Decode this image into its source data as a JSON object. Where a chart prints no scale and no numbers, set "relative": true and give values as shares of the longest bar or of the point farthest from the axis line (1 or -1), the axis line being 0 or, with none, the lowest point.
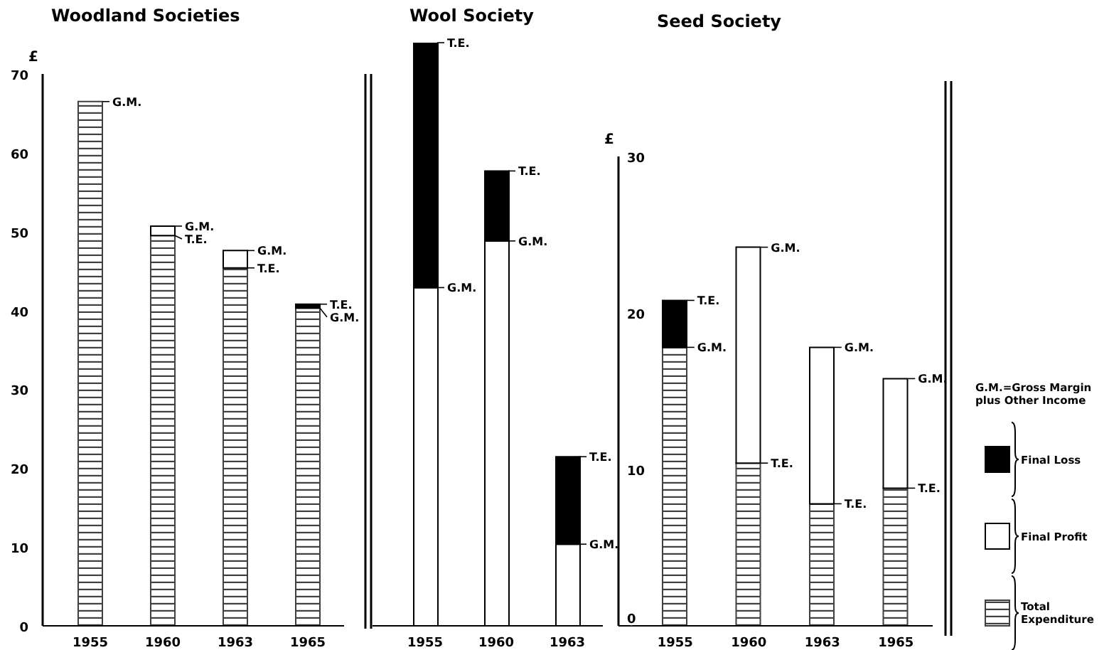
{
  "chart_data": [
    {
      "type": "bar",
      "title": "Woodland Societies",
      "ylabel": "£",
      "stacked": true,
      "categories": [
        "1955",
        "1960",
        "1963",
        "1965"
      ],
      "series": [
        {
          "color": "#404040",
          "values": [
            66.5,
            49.5,
            45.4,
            40.3
          ]
        },
        {
          "color": "#ffffff",
          "values": [
            0,
            1.2,
            2.2,
            0
          ]
        },
        {
          "color": "#000000",
          "values": [
            0,
            0,
            0,
            0.5
          ]
        }
      ],
      "ylim": [
        0,
        70
      ],
      "yticks": [
        0,
        10,
        20,
        30,
        40,
        50,
        60,
        70
      ],
      "grid": false,
      "legend": false,
      "annotations": [
        {
          "text": "G.M.",
          "x": "1955",
          "y": 66.5
        },
        {
          "text": "G.M.",
          "x": "1960",
          "y": 50.7
        },
        {
          "text": "T.E.",
          "x": "1960",
          "y": 49.5
        },
        {
          "text": "G.M.",
          "x": "1963",
          "y": 47.6
        },
        {
          "text": "T.E.",
          "x": "1963",
          "y": 45.4
        },
        {
          "text": "T.E.",
          "x": "1965",
          "y": 40.8
        },
        {
          "text": "G.M.",
          "x": "1965",
          "y": 40.3
        }
      ]
    },
    {
      "type": "bar",
      "title": "Wool Society",
      "stacked": true,
      "categories": [
        "1955",
        "1960",
        "1963"
      ],
      "series": [
        {
          "color": "#ffffff",
          "values": [
            0.58,
            0.66,
            0.14
          ]
        },
        {
          "color": "#000000",
          "values": [
            0.42,
            0.12,
            0.15
          ]
        }
      ],
      "relative": true,
      "grid": false,
      "legend": false,
      "annotations": [
        {
          "text": "T.E.",
          "x": "1955",
          "y": 1
        },
        {
          "text": "G.M.",
          "x": "1955",
          "y": 0.58
        },
        {
          "text": "T.E.",
          "x": "1960",
          "y": 0.78
        },
        {
          "text": "G.M.",
          "x": "1960",
          "y": 0.66
        },
        {
          "text": "T.E.",
          "x": "1963",
          "y": 0.29
        },
        {
          "text": "G.M.",
          "x": "1963",
          "y": 0.14
        }
      ]
    },
    {
      "type": "bar",
      "title": "Seed Society",
      "ylabel": "£",
      "stacked": true,
      "categories": [
        "1955",
        "1960",
        "1963",
        "1965"
      ],
      "series": [
        {
          "name": "Total Expenditure",
          "color": "#404040",
          "values": [
            17.8,
            10.4,
            7.8,
            8.8
          ]
        },
        {
          "name": "Final Profit",
          "color": "#ffffff",
          "values": [
            0,
            13.8,
            10,
            7
          ]
        },
        {
          "name": "Final Loss",
          "color": "#000000",
          "values": [
            3,
            0,
            0,
            0
          ]
        }
      ],
      "ylim": [
        0,
        30
      ],
      "yticks": [
        0,
        10,
        20,
        30
      ],
      "grid": false,
      "legend": "right",
      "legend_title": "G.M.=Gross Margin plus Other Income",
      "annotations": [
        {
          "text": "T.E.",
          "x": "1955",
          "y": 20.8
        },
        {
          "text": "G.M.",
          "x": "1955",
          "y": 17.8
        },
        {
          "text": "G.M.",
          "x": "1960",
          "y": 24.2
        },
        {
          "text": "T.E.",
          "x": "1960",
          "y": 10.4
        },
        {
          "text": "G.M.",
          "x": "1963",
          "y": 17.8
        },
        {
          "text": "T.E.",
          "x": "1963",
          "y": 7.8
        },
        {
          "text": "G.M.",
          "x": "1965",
          "y": 15.8
        },
        {
          "text": "T.E.",
          "x": "1965",
          "y": 8.8
        }
      ]
    }
  ]
}
